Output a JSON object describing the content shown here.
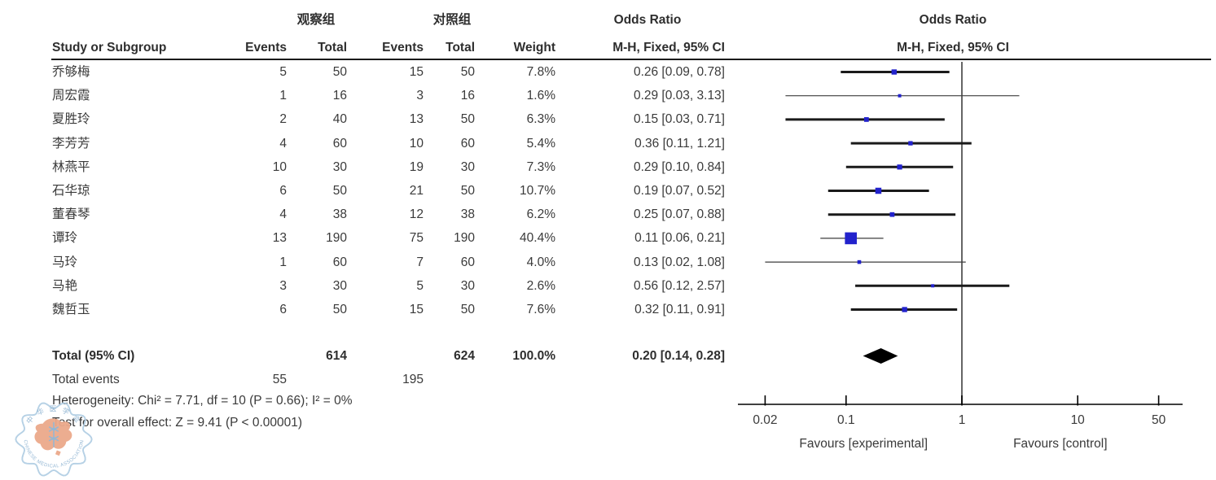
{
  "table_header": {
    "col_study": "Study or Subgroup",
    "group1": "观察组",
    "group2": "对照组",
    "col_events": "Events",
    "col_total": "Total",
    "col_weight": "Weight",
    "or_title": "Odds Ratio",
    "method": "M-H, Fixed, 95% CI"
  },
  "plot_header": {
    "title": "Odds Ratio",
    "subtitle": "M-H, Fixed, 95% CI"
  },
  "chart_data": {
    "type": "forest",
    "effect_measure": "Odds Ratio",
    "method": "M-H, Fixed, 95% CI",
    "x_scale": "log",
    "x_ticks": [
      "0.02",
      "0.1",
      "1",
      "10",
      "50"
    ],
    "x_tick_values": [
      0.02,
      0.1,
      1,
      10,
      50
    ],
    "favours_left": "Favours [experimental]",
    "favours_right": "Favours [control]",
    "studies": [
      {
        "name": "乔够梅",
        "e1": "5",
        "t1": "50",
        "e2": "15",
        "t2": "50",
        "weight": "7.8%",
        "w": 7.8,
        "or_text": "0.26 [0.09, 0.78]",
        "or": 0.26,
        "lo": 0.09,
        "hi": 0.78,
        "thin": false
      },
      {
        "name": "周宏霞",
        "e1": "1",
        "t1": "16",
        "e2": "3",
        "t2": "16",
        "weight": "1.6%",
        "w": 1.6,
        "or_text": "0.29 [0.03, 3.13]",
        "or": 0.29,
        "lo": 0.03,
        "hi": 3.13,
        "thin": true
      },
      {
        "name": "夏胜玲",
        "e1": "2",
        "t1": "40",
        "e2": "13",
        "t2": "50",
        "weight": "6.3%",
        "w": 6.3,
        "or_text": "0.15 [0.03, 0.71]",
        "or": 0.15,
        "lo": 0.03,
        "hi": 0.71,
        "thin": false
      },
      {
        "name": "李芳芳",
        "e1": "4",
        "t1": "60",
        "e2": "10",
        "t2": "60",
        "weight": "5.4%",
        "w": 5.4,
        "or_text": "0.36 [0.11, 1.21]",
        "or": 0.36,
        "lo": 0.11,
        "hi": 1.21,
        "thin": false
      },
      {
        "name": "林燕平",
        "e1": "10",
        "t1": "30",
        "e2": "19",
        "t2": "30",
        "weight": "7.3%",
        "w": 7.3,
        "or_text": "0.29 [0.10, 0.84]",
        "or": 0.29,
        "lo": 0.1,
        "hi": 0.84,
        "thin": false
      },
      {
        "name": "石华琼",
        "e1": "6",
        "t1": "50",
        "e2": "21",
        "t2": "50",
        "weight": "10.7%",
        "w": 10.7,
        "or_text": "0.19 [0.07, 0.52]",
        "or": 0.19,
        "lo": 0.07,
        "hi": 0.52,
        "thin": false
      },
      {
        "name": "董春琴",
        "e1": "4",
        "t1": "38",
        "e2": "12",
        "t2": "38",
        "weight": "6.2%",
        "w": 6.2,
        "or_text": "0.25 [0.07, 0.88]",
        "or": 0.25,
        "lo": 0.07,
        "hi": 0.88,
        "thin": false
      },
      {
        "name": "谭玲",
        "e1": "13",
        "t1": "190",
        "e2": "75",
        "t2": "190",
        "weight": "40.4%",
        "w": 40.4,
        "or_text": "0.11 [0.06, 0.21]",
        "or": 0.11,
        "lo": 0.06,
        "hi": 0.21,
        "thin": true
      },
      {
        "name": "马玲",
        "e1": "1",
        "t1": "60",
        "e2": "7",
        "t2": "60",
        "weight": "4.0%",
        "w": 4.0,
        "or_text": "0.13 [0.02, 1.08]",
        "or": 0.13,
        "lo": 0.02,
        "hi": 1.08,
        "thin": true
      },
      {
        "name": "马艳",
        "e1": "3",
        "t1": "30",
        "e2": "5",
        "t2": "30",
        "weight": "2.6%",
        "w": 2.6,
        "or_text": "0.56 [0.12, 2.57]",
        "or": 0.56,
        "lo": 0.12,
        "hi": 2.57,
        "thin": false
      },
      {
        "name": "魏哲玉",
        "e1": "6",
        "t1": "50",
        "e2": "15",
        "t2": "50",
        "weight": "7.6%",
        "w": 7.6,
        "or_text": "0.32 [0.11, 0.91]",
        "or": 0.32,
        "lo": 0.11,
        "hi": 0.91,
        "thin": false
      }
    ],
    "total": {
      "label": "Total (95% CI)",
      "t1": "614",
      "t2": "624",
      "weight": "100.0%",
      "or_text": "0.20 [0.14, 0.28]",
      "or": 0.2,
      "lo": 0.14,
      "hi": 0.28
    },
    "total_events": {
      "label": "Total events",
      "e1": "55",
      "e2": "195"
    },
    "heterogeneity": "Heterogeneity: Chi² = 7.71, df = 10 (P = 0.66); I² = 0%",
    "overall_effect": "Test for overall effect: Z = 9.41 (P < 0.00001)"
  },
  "colors": {
    "marker_blue": "#2222cc",
    "ci_line": "#1a1a1a",
    "ci_line_thin": "#3d3d3d",
    "diamond": "#000000",
    "axis": "#000000",
    "null_line": "#666666",
    "text": "#3a3a3a"
  },
  "logo": {
    "text_top": "中 华 医 学 会",
    "text_bottom": "CHINESE MEDICAL ASSOCIATION",
    "ring_color": "#b3cfe4",
    "map_color": "#eca98b",
    "text_color": "#8fb4d2"
  }
}
